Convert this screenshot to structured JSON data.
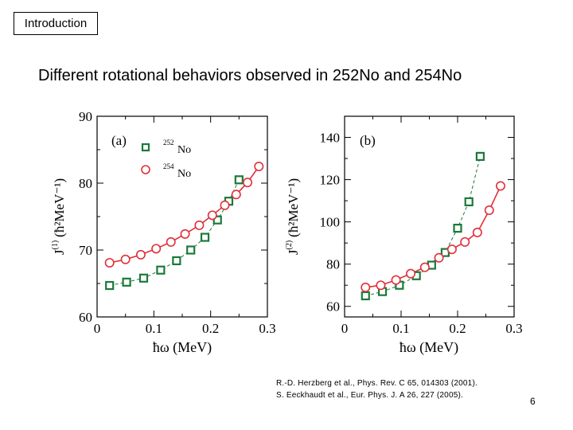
{
  "slide": {
    "section_tag": "Introduction",
    "title": "Different rotational behaviors observed in 252No and 254No",
    "references": [
      "R.-D. Herzberg et al., Phys. Rev. C 65, 014303 (2001).",
      "S. Eeckhaudt et al., Eur. Phys. J. A 26, 227 (2005)."
    ],
    "page_number": "6"
  },
  "colors": {
    "no252": "#1a7a3a",
    "no254": "#e0303a"
  },
  "chart_data": [
    {
      "type": "line",
      "panel_label": "(a)",
      "xlabel": "ħω (MeV)",
      "ylabel_main": "J",
      "ylabel_sup": "(1)",
      "ylabel_unit": "(ħ²MeV⁻¹)",
      "xlim": [
        0,
        0.3
      ],
      "ylim": [
        60,
        90
      ],
      "xticks": [
        0,
        0.1,
        0.2,
        0.3
      ],
      "xtick_labels": [
        "0",
        "0.1",
        "0.2",
        "0.3"
      ],
      "yticks": [
        60,
        70,
        80,
        90
      ],
      "ytick_labels": [
        "60",
        "70",
        "80",
        "90"
      ],
      "legend": [
        {
          "mass": "252",
          "element": "No",
          "marker": "square"
        },
        {
          "mass": "254",
          "element": "No",
          "marker": "circle"
        }
      ],
      "series": [
        {
          "name": "252No",
          "marker": "square",
          "x": [
            0.022,
            0.052,
            0.082,
            0.112,
            0.14,
            0.165,
            0.19,
            0.212,
            0.232,
            0.25
          ],
          "y": [
            64.7,
            65.2,
            65.8,
            67.0,
            68.4,
            70.0,
            71.9,
            74.5,
            77.3,
            80.5
          ]
        },
        {
          "name": "254No",
          "marker": "circle",
          "x": [
            0.022,
            0.05,
            0.077,
            0.104,
            0.13,
            0.155,
            0.18,
            0.203,
            0.225,
            0.245,
            0.265,
            0.285
          ],
          "y": [
            68.1,
            68.6,
            69.3,
            70.2,
            71.2,
            72.4,
            73.7,
            75.2,
            76.7,
            78.3,
            80.1,
            82.5
          ]
        }
      ]
    },
    {
      "type": "line",
      "panel_label": "(b)",
      "xlabel": "ħω (MeV)",
      "ylabel_main": "J",
      "ylabel_sup": "(2)",
      "ylabel_unit": "(ħ²MeV⁻¹)",
      "xlim": [
        0,
        0.3
      ],
      "ylim": [
        55,
        150
      ],
      "xticks": [
        0,
        0.1,
        0.2,
        0.3
      ],
      "xtick_labels": [
        "0",
        "0.1",
        "0.2",
        "0.3"
      ],
      "yticks": [
        60,
        80,
        100,
        120,
        140
      ],
      "ytick_labels": [
        "60",
        "80",
        "100",
        "120",
        "140"
      ],
      "series": [
        {
          "name": "252No",
          "marker": "square",
          "x": [
            0.037,
            0.067,
            0.097,
            0.127,
            0.154,
            0.178,
            0.2,
            0.22,
            0.24
          ],
          "y": [
            65.0,
            67.0,
            70.0,
            74.5,
            79.5,
            85.5,
            97.0,
            109.5,
            131.0
          ]
        },
        {
          "name": "254No",
          "marker": "circle",
          "x": [
            0.037,
            0.064,
            0.091,
            0.117,
            0.142,
            0.167,
            0.19,
            0.213,
            0.235,
            0.256,
            0.276
          ],
          "y": [
            69.0,
            70.0,
            72.5,
            75.5,
            78.5,
            83.0,
            87.0,
            90.5,
            95.0,
            105.5,
            117.0
          ]
        }
      ]
    }
  ]
}
